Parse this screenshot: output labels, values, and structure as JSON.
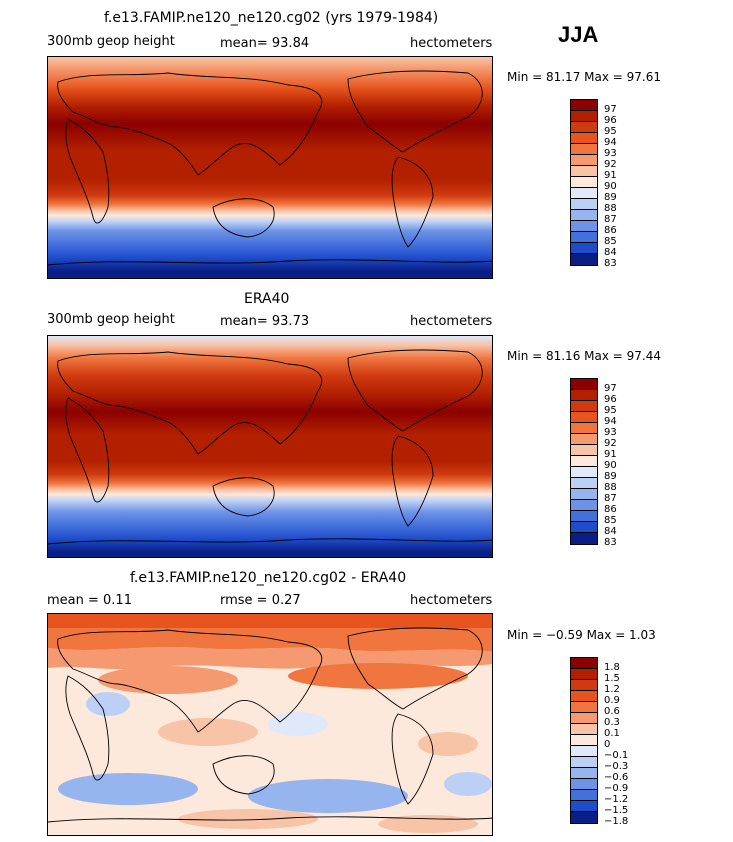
{
  "season": "JJA",
  "panels": [
    {
      "title": "f.e13.FAMIP.ne120_ne120.cg02 (yrs 1979-1984)",
      "left_label": "300mb geop height",
      "center_label": "mean=  93.84",
      "right_label": "hectometers",
      "minmax": "Min =  81.17 Max =  97.61",
      "levels": [
        "97",
        "96",
        "95",
        "94",
        "93",
        "92",
        "91",
        "90",
        "89",
        "88",
        "87",
        "86",
        "85",
        "84",
        "83"
      ]
    },
    {
      "title": "ERA40",
      "left_label": "300mb geop height",
      "center_label": "mean=  93.73",
      "right_label": "hectometers",
      "minmax": "Min =  81.16 Max =  97.44",
      "levels": [
        "97",
        "96",
        "95",
        "94",
        "93",
        "92",
        "91",
        "90",
        "89",
        "88",
        "87",
        "86",
        "85",
        "84",
        "83"
      ]
    },
    {
      "title": "f.e13.FAMIP.ne120_ne120.cg02 - ERA40",
      "left_label": "mean =   0.11",
      "center_label": "rmse =   0.27",
      "right_label": "hectometers",
      "minmax": "Min =  −0.59 Max =   1.03",
      "levels": [
        "1.8",
        "1.5",
        "1.2",
        "0.9",
        "0.6",
        "0.3",
        "0.1",
        "0",
        "−0.1",
        "−0.3",
        "−0.6",
        "−0.9",
        "−1.2",
        "−1.5",
        "−1.8"
      ]
    }
  ],
  "colors": {
    "scale": [
      "#8b0000",
      "#b22000",
      "#cf3a10",
      "#e8541e",
      "#f0753e",
      "#f59a70",
      "#f8c4a8",
      "#fde8dc",
      "#dfe9fa",
      "#bcd0f5",
      "#96b4ee",
      "#6e93e6",
      "#4470dc",
      "#1f4ccb",
      "#0a1f86"
    ]
  }
}
